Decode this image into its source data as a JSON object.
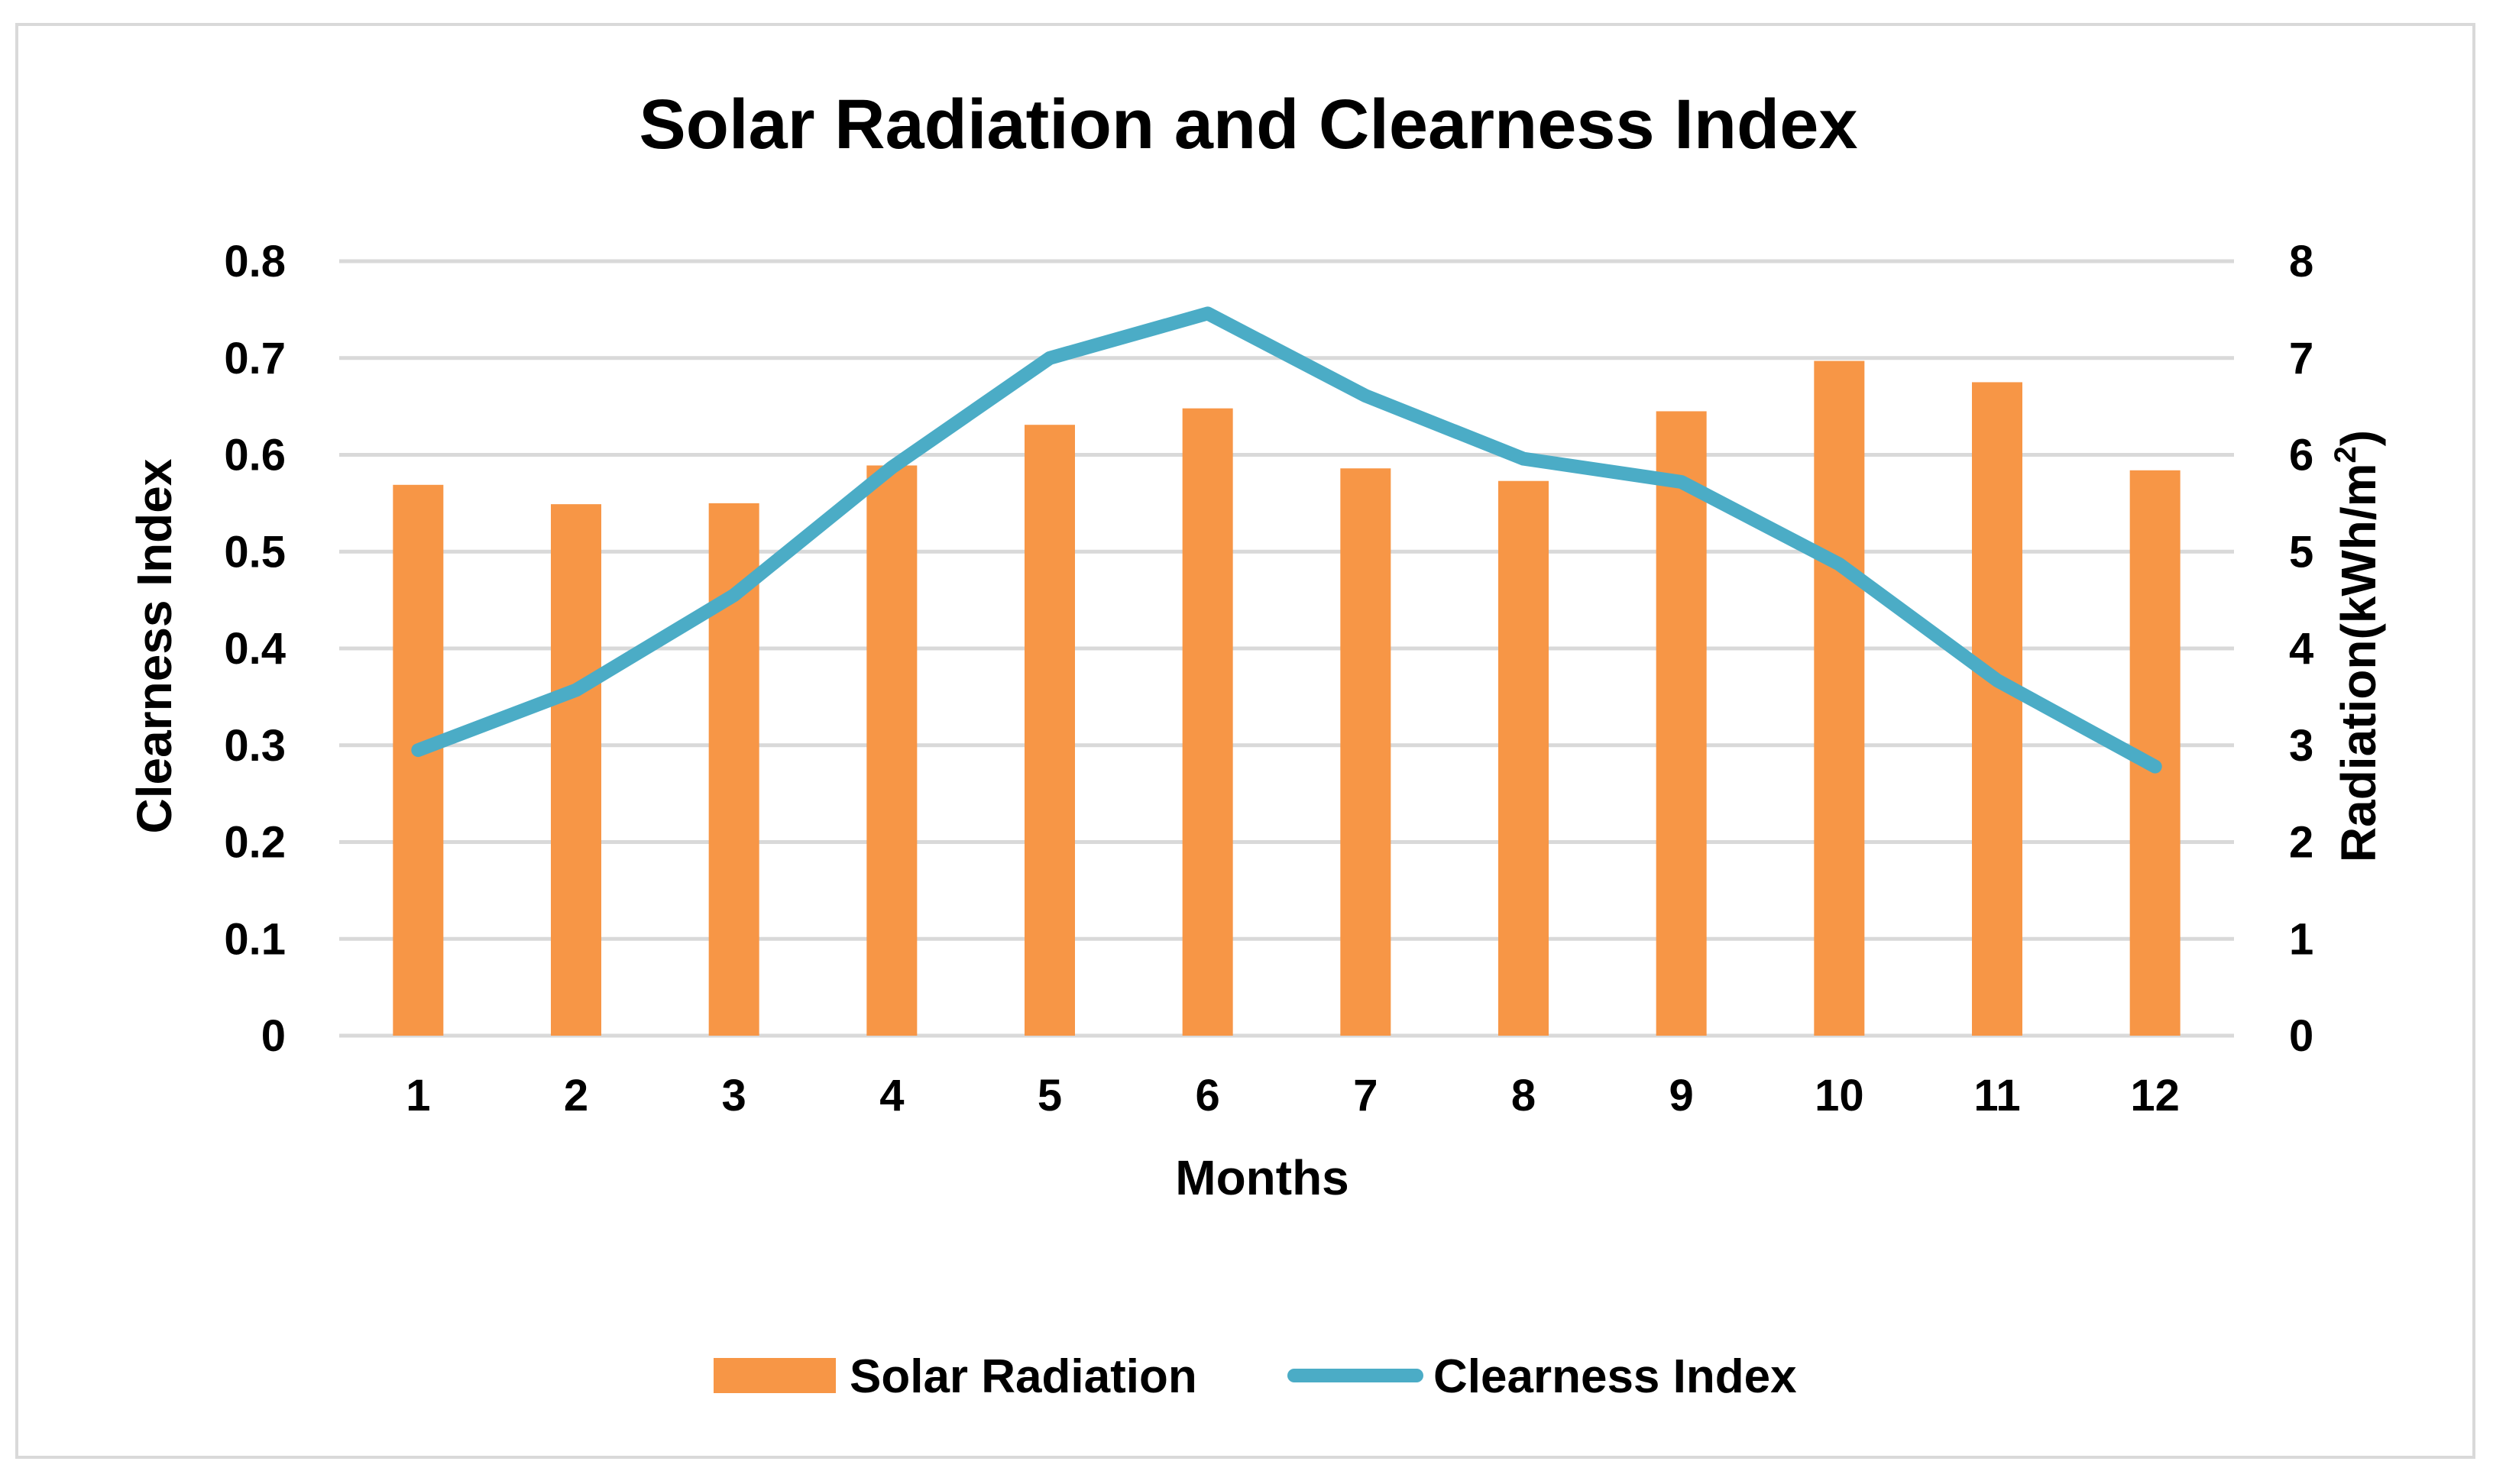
{
  "colors": {
    "bar": "#F79646",
    "line": "#4BACC6",
    "grid": "#D9D9D9",
    "frame": "#D9D9D9"
  },
  "chart_data": {
    "type": "bar",
    "title": "Solar Radiation and Clearness Index",
    "xlabel": "Months",
    "ylabel_left": "Clearness Index",
    "ylabel_right_main": "Radiation(kWh/m",
    "ylabel_right_sup": "2",
    "ylabel_right_close": ")",
    "categories": [
      "1",
      "2",
      "3",
      "4",
      "5",
      "6",
      "7",
      "8",
      "9",
      "10",
      "11",
      "12"
    ],
    "y_left": {
      "min": 0,
      "max": 0.8,
      "ticks": [
        "0",
        "0.1",
        "0.2",
        "0.3",
        "0.4",
        "0.5",
        "0.6",
        "0.7",
        "0.8"
      ]
    },
    "y_right": {
      "min": 0,
      "max": 8,
      "ticks": [
        "0",
        "1",
        "2",
        "3",
        "4",
        "5",
        "6",
        "7",
        "8"
      ]
    },
    "grid": true,
    "legend_position": "bottom",
    "series": [
      {
        "name": "Solar Radiation",
        "type": "bar",
        "axis": "right",
        "values": [
          5.69,
          5.49,
          5.5,
          5.89,
          6.31,
          6.48,
          5.86,
          5.73,
          6.45,
          6.97,
          6.75,
          5.84
        ]
      },
      {
        "name": "Clearness Index",
        "type": "line",
        "axis": "left",
        "values": [
          0.295,
          0.357,
          0.455,
          0.587,
          0.7,
          0.746,
          0.661,
          0.596,
          0.572,
          0.487,
          0.367,
          0.278
        ]
      }
    ]
  }
}
